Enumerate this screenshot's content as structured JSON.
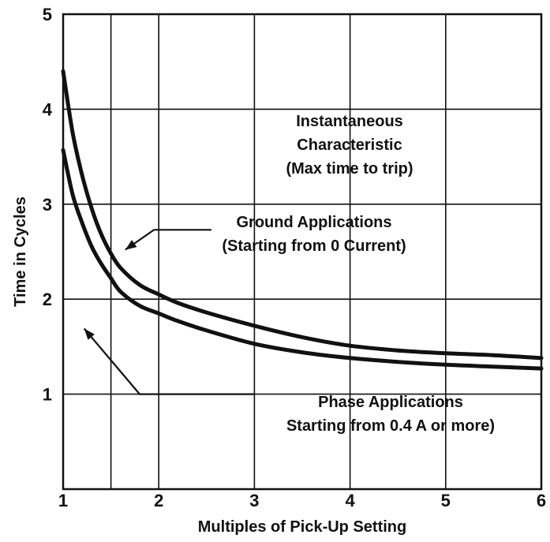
{
  "chart_data": {
    "type": "line",
    "title": "",
    "xlabel": "Multiples of Pick-Up Setting",
    "ylabel": "Time in Cycles",
    "xlim": [
      1,
      6
    ],
    "ylim": [
      0,
      5
    ],
    "xticks": [
      1,
      2,
      3,
      4,
      5,
      6
    ],
    "yticks": [
      1,
      2,
      3,
      4,
      5
    ],
    "x_tick_labels": [
      "1",
      "2",
      "3",
      "4",
      "5",
      "6"
    ],
    "y_tick_labels": [
      "1",
      "2",
      "3",
      "4",
      "5"
    ],
    "grid": true,
    "legend": "none",
    "extra_vertical_gridline_x": 1.5,
    "series": [
      {
        "label_lines": [
          "Ground Applications",
          "(Starting from 0 Current)"
        ],
        "x": [
          1.0,
          1.1,
          1.2,
          1.3,
          1.4,
          1.5,
          1.6,
          1.8,
          2.0,
          2.2,
          2.5,
          3.0,
          3.5,
          4.0,
          4.5,
          5.0,
          5.5,
          6.0
        ],
        "y": [
          4.4,
          3.75,
          3.3,
          2.95,
          2.68,
          2.48,
          2.33,
          2.15,
          2.05,
          1.96,
          1.86,
          1.72,
          1.6,
          1.51,
          1.46,
          1.43,
          1.41,
          1.38
        ]
      },
      {
        "label_lines": [
          "Phase Applications",
          "Starting from 0.4 A or more)"
        ],
        "x": [
          1.0,
          1.1,
          1.2,
          1.3,
          1.4,
          1.5,
          1.6,
          1.8,
          2.0,
          2.2,
          2.5,
          3.0,
          3.5,
          4.0,
          4.5,
          5.0,
          5.5,
          6.0
        ],
        "y": [
          3.57,
          3.1,
          2.8,
          2.55,
          2.37,
          2.22,
          2.08,
          1.93,
          1.85,
          1.77,
          1.67,
          1.53,
          1.44,
          1.38,
          1.34,
          1.31,
          1.29,
          1.27
        ]
      }
    ],
    "annotations": {
      "characteristic_lines": [
        "Instantaneous",
        "Characteristic",
        "(Max time to trip)"
      ]
    }
  }
}
